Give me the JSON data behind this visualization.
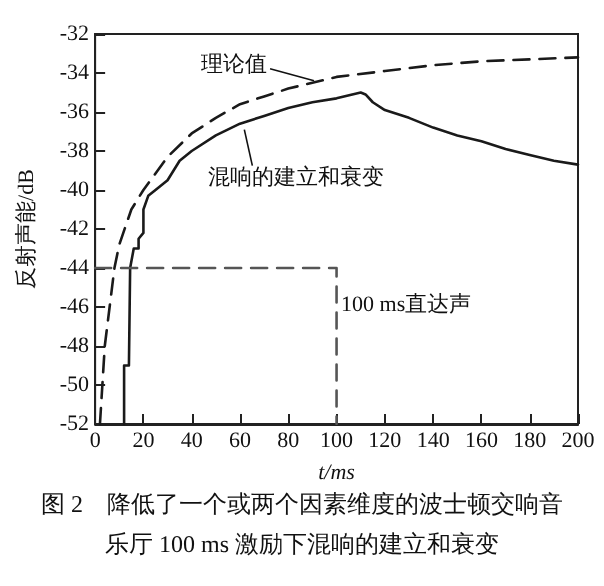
{
  "chart_data": {
    "type": "line",
    "title": "图 2　降低了一个或两个因素维度的波士顿交响音乐厅 100 ms 激励下混响的建立和衰变",
    "xlabel": "t/ms",
    "ylabel": "反射声能/dB",
    "xlim": [
      0,
      200
    ],
    "xticks": [
      0,
      20,
      40,
      60,
      80,
      100,
      120,
      140,
      160,
      180,
      200
    ],
    "ylim": [
      -52,
      -32
    ],
    "yticks": [
      -52,
      -50,
      -48,
      -46,
      -44,
      -42,
      -40,
      -38,
      -36,
      -34,
      -32
    ],
    "grid": false,
    "marker": "none",
    "series": [
      {
        "color": "#1a1a1a",
        "line_style": "dashed",
        "x": [
          2,
          4,
          6,
          8,
          10,
          15,
          20,
          30,
          40,
          50,
          60,
          70,
          80,
          90,
          100,
          120,
          140,
          160,
          180,
          200
        ],
        "values": [
          -52,
          -48,
          -46,
          -44,
          -42.8,
          -41,
          -40,
          -38.3,
          -37.1,
          -36.3,
          -35.6,
          -35.2,
          -34.8,
          -34.5,
          -34.2,
          -33.9,
          -33.6,
          -33.4,
          -33.3,
          -33.2
        ]
      },
      {
        "color": "#1a1a1a",
        "line_style": "solid",
        "x": [
          12,
          12,
          14,
          14.5,
          16,
          18,
          18,
          20,
          20,
          22,
          25,
          30,
          35,
          40,
          50,
          60,
          70,
          80,
          90,
          100,
          110,
          112,
          115,
          120,
          130,
          140,
          150,
          160,
          170,
          180,
          190,
          200
        ],
        "values": [
          -52,
          -49,
          -49,
          -44,
          -43,
          -43,
          -42.5,
          -42.2,
          -41,
          -40.3,
          -40,
          -39.5,
          -38.5,
          -38,
          -37.2,
          -36.6,
          -36.2,
          -35.8,
          -35.5,
          -35.3,
          -35.0,
          -35.1,
          -35.5,
          -35.9,
          -36.3,
          -36.8,
          -37.2,
          -37.5,
          -37.9,
          -38.2,
          -38.5,
          -38.7
        ]
      },
      {
        "color": "#555555",
        "line_style": "dashed",
        "x": [
          0,
          100,
          100
        ],
        "values": [
          -44,
          -44,
          -52
        ]
      }
    ],
    "annotations": [
      {
        "text": "理论值",
        "x": 94,
        "y": -34.4
      },
      {
        "text": "混响的建立和衰变",
        "x": 66,
        "y": -36.9
      },
      "100 ms直达声"
    ]
  }
}
